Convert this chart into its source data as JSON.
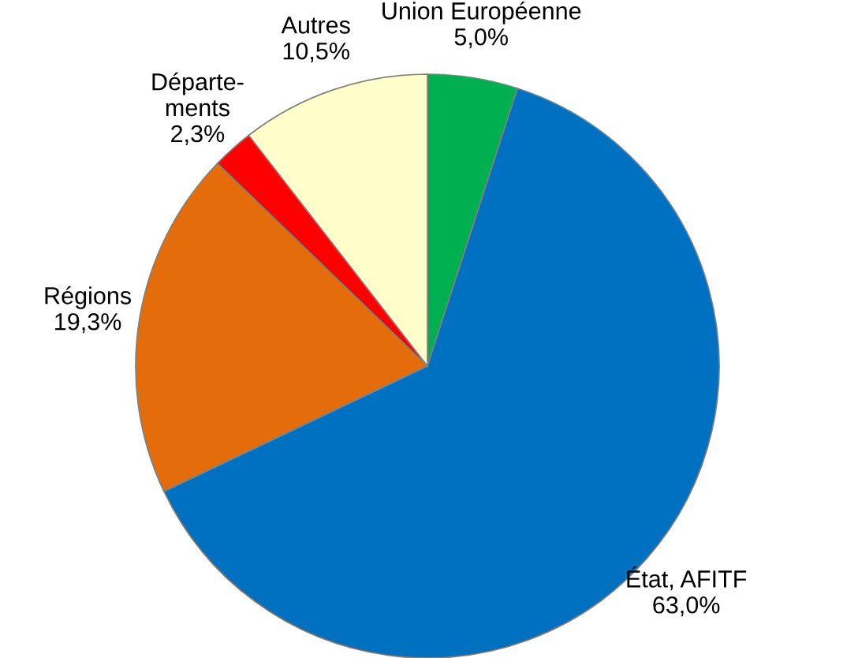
{
  "chart_data": {
    "type": "pie",
    "categories": [
      "Union Européenne",
      "État, AFITF",
      "Régions",
      "Départe-\nments",
      "Autres"
    ],
    "values": [
      5.0,
      63.0,
      19.3,
      2.3,
      10.5
    ],
    "value_labels": [
      "5,0%",
      "63,0%",
      "19,3%",
      "2,3%",
      "10,5%"
    ],
    "colors": [
      "#00b050",
      "#0070c0",
      "#e46c0a",
      "#ff0000",
      "#ffffcc"
    ]
  }
}
